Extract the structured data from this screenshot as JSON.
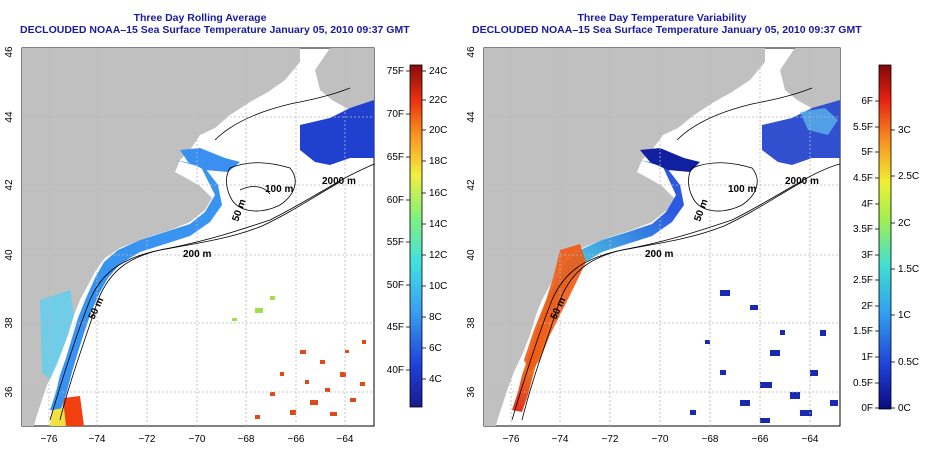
{
  "left_panel": {
    "title_line1": "Three Day Rolling Average",
    "title_line2": "DECLOUDED NOAA–15 Sea Surface Temperature January 05, 2010 09:37 GMT",
    "colorbar_f": [
      "75F",
      "70F",
      "65F",
      "60F",
      "55F",
      "50F",
      "45F",
      "40F"
    ],
    "colorbar_c": [
      "24C",
      "22C",
      "20C",
      "18C",
      "16C",
      "14C",
      "12C",
      "10C",
      "8C",
      "6C",
      "4C"
    ]
  },
  "right_panel": {
    "title_line1": "Three Day Temperature Variability",
    "title_line2": "DECLOUDED NOAA–15 Sea Surface Temperature January 05, 2010 09:37 GMT",
    "colorbar_f": [
      "6F",
      "5.5F",
      "5F",
      "4.5F",
      "4F",
      "3.5F",
      "3F",
      "2.5F",
      "2F",
      "1.5F",
      "1F",
      "0.5F",
      "0F"
    ],
    "colorbar_c": [
      "3C",
      "2.5C",
      "2C",
      "1.5C",
      "1C",
      "0.5C",
      "0C"
    ]
  },
  "axes": {
    "lon_ticks": [
      "−76",
      "−74",
      "−72",
      "−70",
      "−68",
      "−66",
      "−64"
    ],
    "lat_ticks": [
      "46",
      "44",
      "42",
      "40",
      "38",
      "36"
    ]
  },
  "contour_labels": [
    "2000 m",
    "100 m",
    "50 m",
    "200 m",
    "50 m"
  ],
  "colors": {
    "land": "#c0c0c0",
    "title": "#1a1aa0",
    "grid": "#b0b0b0"
  }
}
